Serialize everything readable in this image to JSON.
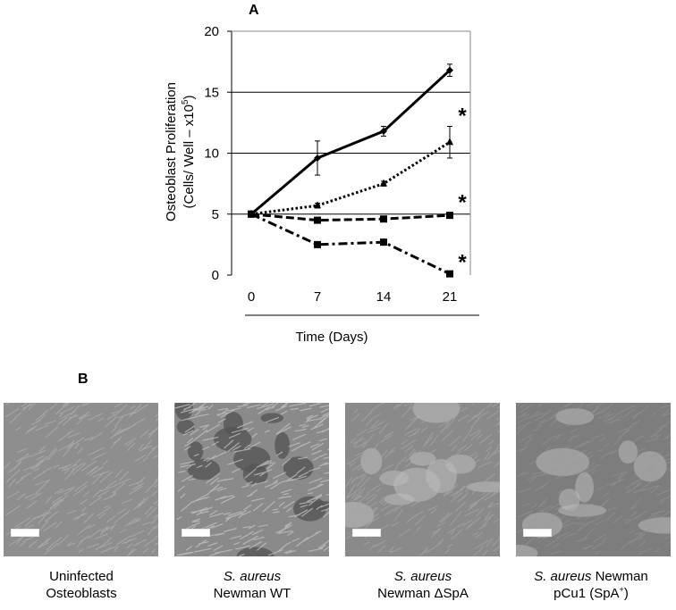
{
  "panel_a_label": "A",
  "panel_b_label": "B",
  "chart_data": {
    "type": "line",
    "title": "",
    "ylabel_line1": "Osteoblast Proliferation",
    "ylabel_line2_prefix": "(Cells/ Well – x10",
    "ylabel_line2_sup": "5",
    "ylabel_line2_suffix": ")",
    "xlabel": "Time (Days)",
    "categories": [
      "0",
      "7",
      "14",
      "21"
    ],
    "y_ticks": [
      "0",
      "5",
      "10",
      "15",
      "20"
    ],
    "ylim": [
      0,
      20
    ],
    "grid": true,
    "series": [
      {
        "values": [
          5.0,
          9.6,
          11.8,
          16.8
        ],
        "errors": [
          0.2,
          1.4,
          0.4,
          0.5
        ],
        "dash": "solid",
        "marker": "diamond",
        "significant": false
      },
      {
        "values": [
          5.0,
          5.7,
          7.5,
          10.9
        ],
        "errors": [
          0.2,
          0.2,
          0.2,
          1.3
        ],
        "dash": "dotted",
        "marker": "triangle",
        "significant": true
      },
      {
        "values": [
          5.0,
          4.5,
          4.6,
          4.9
        ],
        "errors": [
          0.2,
          0.2,
          0.2,
          0.2
        ],
        "dash": "dashed",
        "marker": "square",
        "significant": true
      },
      {
        "values": [
          5.0,
          2.5,
          2.7,
          0.1
        ],
        "errors": [
          0.1,
          0.2,
          0.2,
          0.1
        ],
        "dash": "dashdot",
        "marker": "square",
        "significant": true
      }
    ],
    "significance_mark": "*"
  },
  "images": [
    {
      "line1": "Uninfected",
      "line1_italic": "",
      "line2": "Osteoblasts",
      "sup": "",
      "line2_suffix": ""
    },
    {
      "line1": "",
      "line1_italic": "S. aureus",
      "line2": "Newman WT",
      "sup": "",
      "line2_suffix": ""
    },
    {
      "line1": "",
      "line1_italic": "S. aureus",
      "line2": "Newman ΔSpA",
      "sup": "",
      "line2_suffix": ""
    },
    {
      "line1": " Newman",
      "line1_italic": "S. aureus",
      "line2": "pCu1 (SpA",
      "sup": "+",
      "line2_suffix": ")"
    }
  ]
}
